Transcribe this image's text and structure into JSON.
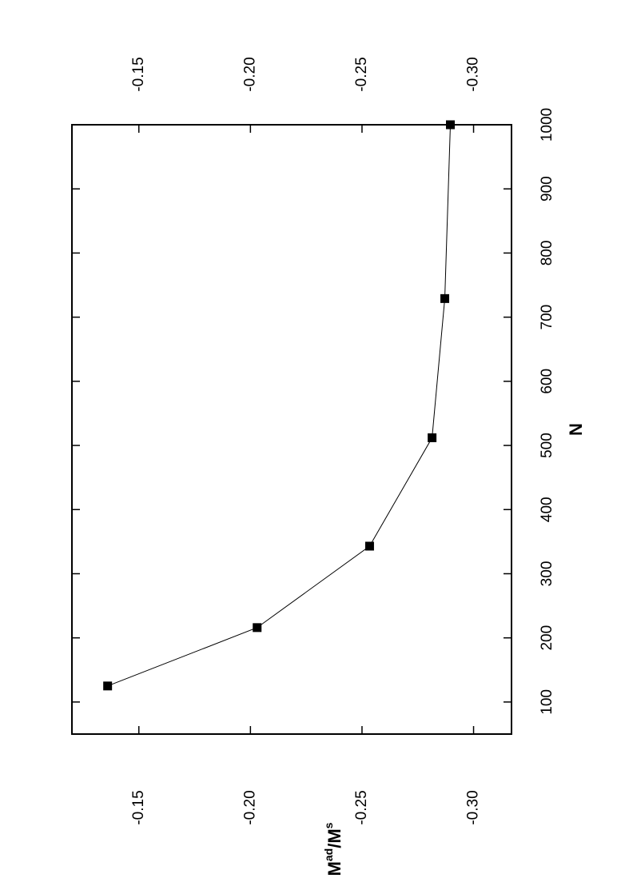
{
  "chart_data": {
    "type": "line",
    "xlabel": "N",
    "ylabel": [
      "M",
      "ad",
      "/M",
      "s"
    ],
    "x": [
      125,
      216,
      343,
      512,
      729,
      1000
    ],
    "series": [
      {
        "color": "#000000",
        "values": [
          -0.136,
          -0.203,
          -0.2534,
          -0.2814,
          -0.2871,
          -0.2896
        ]
      }
    ],
    "xlim": [
      50,
      1000
    ],
    "xticks": [
      100,
      200,
      300,
      400,
      500,
      600,
      700,
      800,
      900,
      1000
    ],
    "ylim": [
      -0.12,
      -0.317
    ],
    "yticks": [
      {
        "value": -0.15,
        "label": "-0.15"
      },
      {
        "value": -0.2,
        "label": "-0.20"
      },
      {
        "value": -0.25,
        "label": "-0.25"
      },
      {
        "value": -0.3,
        "label": "-0.30"
      }
    ]
  }
}
